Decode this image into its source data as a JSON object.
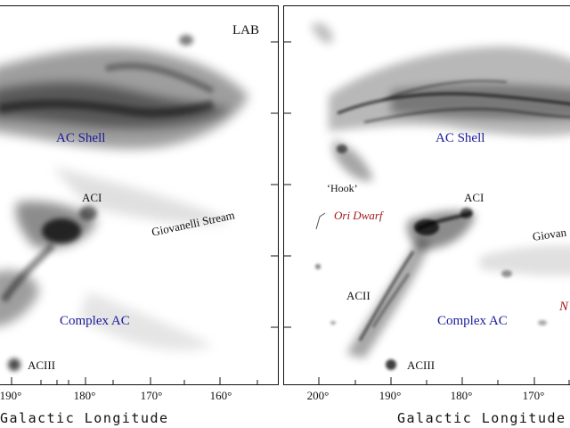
{
  "left_panel": {
    "survey_label": "LAB",
    "labels": {
      "ac_shell": "AC Shell",
      "aci": "ACI",
      "giovanelli_stream": "Giovanelli Stream",
      "complex_ac": "Complex AC",
      "aciii": "ACIII"
    },
    "x_ticks": [
      "190°",
      "180°",
      "170°",
      "160°"
    ],
    "x_axis_title": "Galactic Longitude"
  },
  "right_panel": {
    "labels": {
      "ac_shell": "AC Shell",
      "hook": "‘Hook’",
      "aci": "ACI",
      "ori_dwarf": "Ori Dwarf",
      "giovanelli_partial": "Giovan",
      "acii": "ACII",
      "complex_ac": "Complex AC",
      "aciii": "ACIII",
      "partial_red": "N"
    },
    "x_ticks": [
      "200°",
      "190°",
      "180°",
      "170°"
    ],
    "x_axis_title": "Galactic Longitude"
  },
  "colors": {
    "region_label": "#1a1a9a",
    "object_label": "#a31818",
    "emission": "#000000"
  }
}
